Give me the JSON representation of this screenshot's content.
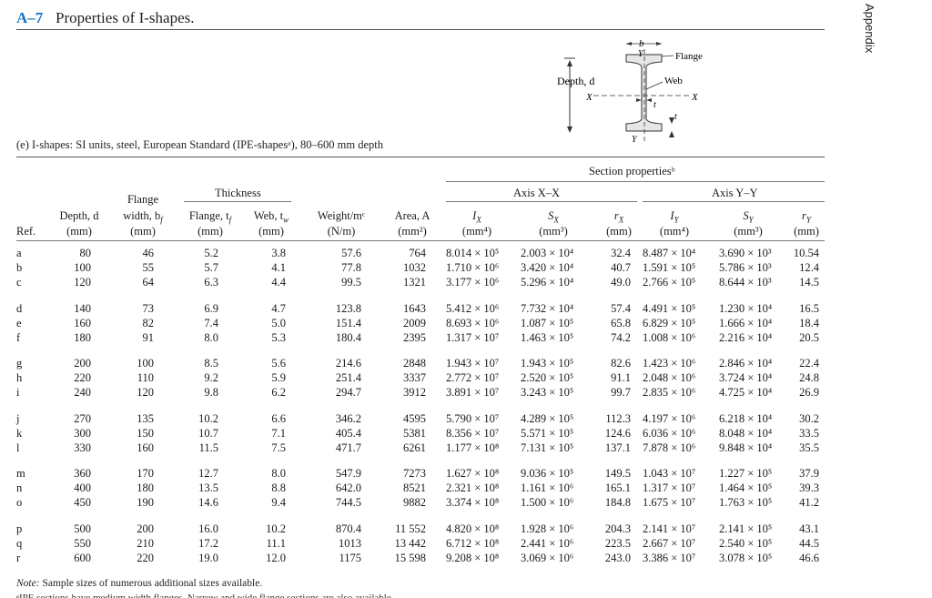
{
  "header": {
    "code": "A–7",
    "title": "Properties of I-shapes.",
    "side_tab": "Appendix"
  },
  "subtitle": "(e) I-shapes: SI units, steel, European Standard (IPE-shapesᵃ), 80–600 mm depth",
  "diagram": {
    "bf": "b",
    "bf_sub": "f",
    "flange": "Flange",
    "web": "Web",
    "depth": "Depth, d",
    "x": "X",
    "y": "Y",
    "tw": "t",
    "tw_sub": "w",
    "tf": "t",
    "tf_sub": "f"
  },
  "columns": {
    "section_properties": "Section propertiesᵇ",
    "thickness": "Thickness",
    "axis_x": "Axis X–X",
    "axis_y": "Axis Y–Y",
    "ref": "Ref.",
    "depth": "Depth, d",
    "depth_u": "(mm)",
    "flange_w1": "Flange",
    "flange_w2": "width, b",
    "flange_w2_sub": "f",
    "flange_w_u": "(mm)",
    "tf": "Flange, t",
    "tf_sub": "f",
    "tf_u": "(mm)",
    "tw": "Web, t",
    "tw_sub": "w",
    "tw_u": "(mm)",
    "weight": "Weight/mᶜ",
    "weight_u": "(N/m)",
    "area": "Area, A",
    "area_u": "(mm²)",
    "ix": "I",
    "ix_sub": "X",
    "ix_u": "(mm⁴)",
    "sx": "S",
    "sx_sub": "X",
    "sx_u": "(mm³)",
    "rx": "r",
    "rx_sub": "X",
    "rx_u": "(mm)",
    "iy": "I",
    "iy_sub": "Y",
    "iy_u": "(mm⁴)",
    "sy": "S",
    "sy_sub": "Y",
    "sy_u": "(mm³)",
    "ry": "r",
    "ry_sub": "Y",
    "ry_u": "(mm)"
  },
  "rows": [
    [
      "a",
      "80",
      "46",
      "5.2",
      "3.8",
      "57.6",
      "764",
      "8.014 × 10⁵",
      "2.003 × 10⁴",
      "32.4",
      "8.487 × 10⁴",
      "3.690 × 10³",
      "10.54"
    ],
    [
      "b",
      "100",
      "55",
      "5.7",
      "4.1",
      "77.8",
      "1032",
      "1.710 × 10⁶",
      "3.420 × 10⁴",
      "40.7",
      "1.591 × 10⁵",
      "5.786 × 10³",
      "12.4"
    ],
    [
      "c",
      "120",
      "64",
      "6.3",
      "4.4",
      "99.5",
      "1321",
      "3.177 × 10⁶",
      "5.296 × 10⁴",
      "49.0",
      "2.766 × 10⁵",
      "8.644 × 10³",
      "14.5"
    ],
    [
      "d",
      "140",
      "73",
      "6.9",
      "4.7",
      "123.8",
      "1643",
      "5.412 × 10⁶",
      "7.732 × 10⁴",
      "57.4",
      "4.491 × 10⁵",
      "1.230 × 10⁴",
      "16.5"
    ],
    [
      "e",
      "160",
      "82",
      "7.4",
      "5.0",
      "151.4",
      "2009",
      "8.693 × 10⁶",
      "1.087 × 10⁵",
      "65.8",
      "6.829 × 10⁵",
      "1.666 × 10⁴",
      "18.4"
    ],
    [
      "f",
      "180",
      "91",
      "8.0",
      "5.3",
      "180.4",
      "2395",
      "1.317 × 10⁷",
      "1.463 × 10⁵",
      "74.2",
      "1.008 × 10⁶",
      "2.216 × 10⁴",
      "20.5"
    ],
    [
      "g",
      "200",
      "100",
      "8.5",
      "5.6",
      "214.6",
      "2848",
      "1.943 × 10⁷",
      "1.943 × 10⁵",
      "82.6",
      "1.423 × 10⁶",
      "2.846 × 10⁴",
      "22.4"
    ],
    [
      "h",
      "220",
      "110",
      "9.2",
      "5.9",
      "251.4",
      "3337",
      "2.772 × 10⁷",
      "2.520 × 10⁵",
      "91.1",
      "2.048 × 10⁶",
      "3.724 × 10⁴",
      "24.8"
    ],
    [
      "i",
      "240",
      "120",
      "9.8",
      "6.2",
      "294.7",
      "3912",
      "3.891 × 10⁷",
      "3.243 × 10⁵",
      "99.7",
      "2.835 × 10⁶",
      "4.725 × 10⁴",
      "26.9"
    ],
    [
      "j",
      "270",
      "135",
      "10.2",
      "6.6",
      "346.2",
      "4595",
      "5.790 × 10⁷",
      "4.289 × 10⁵",
      "112.3",
      "4.197 × 10⁶",
      "6.218 × 10⁴",
      "30.2"
    ],
    [
      "k",
      "300",
      "150",
      "10.7",
      "7.1",
      "405.4",
      "5381",
      "8.356 × 10⁷",
      "5.571 × 10⁵",
      "124.6",
      "6.036 × 10⁶",
      "8.048 × 10⁴",
      "33.5"
    ],
    [
      "l",
      "330",
      "160",
      "11.5",
      "7.5",
      "471.7",
      "6261",
      "1.177 × 10⁸",
      "7.131 × 10⁵",
      "137.1",
      "7.878 × 10⁶",
      "9.848 × 10⁴",
      "35.5"
    ],
    [
      "m",
      "360",
      "170",
      "12.7",
      "8.0",
      "547.9",
      "7273",
      "1.627 × 10⁸",
      "9.036 × 10⁵",
      "149.5",
      "1.043 × 10⁷",
      "1.227 × 10⁵",
      "37.9"
    ],
    [
      "n",
      "400",
      "180",
      "13.5",
      "8.8",
      "642.0",
      "8521",
      "2.321 × 10⁸",
      "1.161 × 10⁶",
      "165.1",
      "1.317 × 10⁷",
      "1.464 × 10⁵",
      "39.3"
    ],
    [
      "o",
      "450",
      "190",
      "14.6",
      "9.4",
      "744.5",
      "9882",
      "3.374 × 10⁸",
      "1.500 × 10⁶",
      "184.8",
      "1.675 × 10⁷",
      "1.763 × 10⁵",
      "41.2"
    ],
    [
      "p",
      "500",
      "200",
      "16.0",
      "10.2",
      "870.4",
      "11 552",
      "4.820 × 10⁸",
      "1.928 × 10⁶",
      "204.3",
      "2.141 × 10⁷",
      "2.141 × 10⁵",
      "43.1"
    ],
    [
      "q",
      "550",
      "210",
      "17.2",
      "11.1",
      "1013",
      "13 442",
      "6.712 × 10⁸",
      "2.441 × 10⁶",
      "223.5",
      "2.667 × 10⁷",
      "2.540 × 10⁵",
      "44.5"
    ],
    [
      "r",
      "600",
      "220",
      "19.0",
      "12.0",
      "1175",
      "15 598",
      "9.208 × 10⁸",
      "3.069 × 10⁶",
      "243.0",
      "3.386 × 10⁷",
      "3.078 × 10⁵",
      "46.6"
    ]
  ],
  "note_label": "Note:",
  "note_text": " Sample sizes of numerous additional sizes available.",
  "footnote_cut": "ᵃIPE sections have medium width flanges. Narrow and wide flange sections are also available."
}
